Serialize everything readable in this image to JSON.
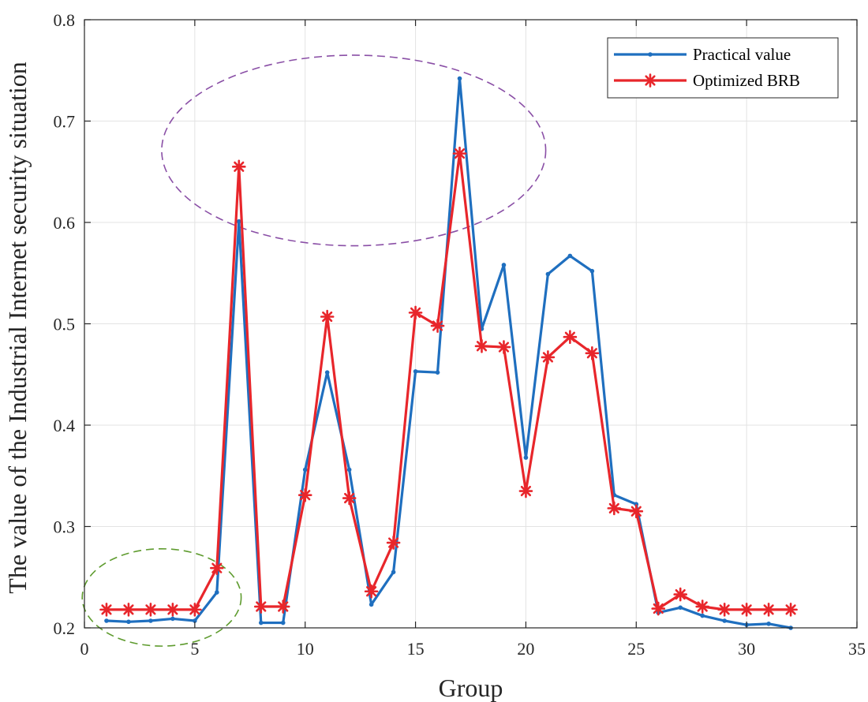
{
  "chart_data": {
    "type": "line",
    "title": "",
    "xlabel": "Group",
    "ylabel": "The value of the Industrial Internet security situation",
    "xlim": [
      0,
      35
    ],
    "ylim": [
      0.2,
      0.8
    ],
    "xticks": [
      0,
      5,
      10,
      15,
      20,
      25,
      30,
      35
    ],
    "yticks": [
      0.2,
      0.3,
      0.4,
      0.5,
      0.6,
      0.7,
      0.8
    ],
    "xtick_labels": [
      "0",
      "5",
      "10",
      "15",
      "20",
      "25",
      "30",
      "35"
    ],
    "ytick_labels": [
      "0.2",
      "0.3",
      "0.4",
      "0.5",
      "0.6",
      "0.7",
      "0.8"
    ],
    "grid": true,
    "legend_position": "top-right",
    "x": [
      1,
      2,
      3,
      4,
      5,
      6,
      7,
      8,
      9,
      10,
      11,
      12,
      13,
      14,
      15,
      16,
      17,
      18,
      19,
      20,
      21,
      22,
      23,
      24,
      25,
      26,
      27,
      28,
      29,
      30,
      31,
      32
    ],
    "series": [
      {
        "name": "Practical value",
        "color": "#1f6fbf",
        "marker": "dot",
        "values": [
          0.207,
          0.206,
          0.207,
          0.209,
          0.207,
          0.235,
          0.601,
          0.205,
          0.205,
          0.356,
          0.452,
          0.356,
          0.223,
          0.255,
          0.453,
          0.452,
          0.742,
          0.495,
          0.558,
          0.368,
          0.549,
          0.567,
          0.552,
          0.331,
          0.322,
          0.215,
          0.22,
          0.212,
          0.207,
          0.203,
          0.204,
          0.2
        ]
      },
      {
        "name": "Optimized BRB",
        "color": "#e8262b",
        "marker": "asterisk",
        "values": [
          0.218,
          0.218,
          0.218,
          0.218,
          0.218,
          0.259,
          0.655,
          0.221,
          0.221,
          0.331,
          0.507,
          0.328,
          0.236,
          0.284,
          0.511,
          0.498,
          0.668,
          0.478,
          0.477,
          0.335,
          0.467,
          0.487,
          0.471,
          0.318,
          0.315,
          0.219,
          0.233,
          0.221,
          0.218,
          0.218,
          0.218,
          0.218
        ]
      }
    ],
    "annotations": [
      {
        "type": "dashed-ellipse",
        "color": "#8a4fa6",
        "cx": 12.2,
        "cy": 0.671,
        "rx": 8.7,
        "ry": 0.094
      },
      {
        "type": "dashed-ellipse",
        "color": "#5e9b2e",
        "cx": 3.5,
        "cy": 0.23,
        "rx": 3.6,
        "ry": 0.048
      }
    ]
  }
}
